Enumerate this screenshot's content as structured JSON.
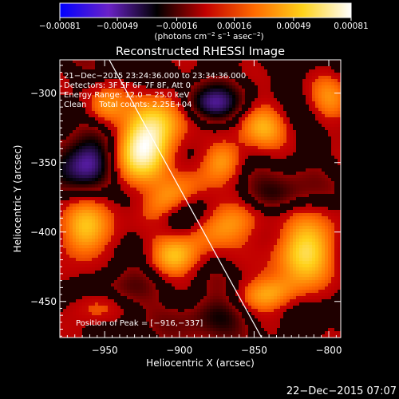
{
  "chart_data": {
    "type": "heatmap",
    "title": "Reconstructed RHESSI Image",
    "xlabel": "Heliocentric X (arcsec)",
    "ylabel": "Heliocentric Y (arcsec)",
    "xlim": [
      -980,
      -792
    ],
    "ylim": [
      -476,
      -276
    ],
    "xticks": [
      -950,
      -900,
      -850,
      -800
    ],
    "yticks": [
      -300,
      -350,
      -400,
      -450
    ],
    "xtick_labels": [
      "−950",
      "−900",
      "−850",
      "−800"
    ],
    "ytick_labels": [
      "−300",
      "−350",
      "−400",
      "−450"
    ],
    "colorbar": {
      "range": [
        -0.00081,
        0.00081
      ],
      "ticks": [
        -0.00081,
        -0.00049,
        -0.00016,
        0.00016,
        0.00049,
        0.00081
      ],
      "tick_labels": [
        "−0.00081",
        "−0.00049",
        "−0.00016",
        "0.00016",
        "0.00049",
        "0.00081"
      ],
      "label_parts": [
        "(photons cm",
        "−2",
        " s",
        "−1",
        " asec",
        "−2",
        ")"
      ],
      "colors": [
        "#0000ff",
        "#6a22c8",
        "#000000",
        "#c20000",
        "#ff6a00",
        "#ffd21a",
        "#ffffff"
      ]
    },
    "annotations": [
      "21−Dec−2015 23:24:36.000 to 23:34:36.000",
      "Detectors: 3F 5F 6F 7F 8F, Att 0",
      "Energy Range: 12.0 − 25.0 keV",
      "Clean     Total counts: 2.25E+04"
    ],
    "peak_label": "Position of Peak = [−916,−337]",
    "peak": [
      -916,
      -337
    ],
    "limb_line": [
      [
        -950,
        -270
      ],
      [
        -845,
        -476
      ]
    ],
    "sources": [
      {
        "x": -922,
        "y": -335,
        "sx": 14,
        "sy": 24,
        "rot": 32,
        "amp": 1.0
      },
      {
        "x": -950,
        "y": -310,
        "sx": 9,
        "sy": 10,
        "rot": 0,
        "amp": 0.45
      },
      {
        "x": -870,
        "y": -395,
        "sx": 28,
        "sy": 11,
        "rot": -20,
        "amp": 0.48
      },
      {
        "x": -815,
        "y": -412,
        "sx": 15,
        "sy": 17,
        "rot": 25,
        "amp": 0.72
      },
      {
        "x": -845,
        "y": -323,
        "sx": 12,
        "sy": 12,
        "rot": 0,
        "amp": 0.5
      },
      {
        "x": -870,
        "y": -348,
        "sx": 10,
        "sy": 10,
        "rot": 0,
        "amp": 0.45
      },
      {
        "x": -965,
        "y": -400,
        "sx": 12,
        "sy": 16,
        "rot": 0,
        "amp": 0.62
      },
      {
        "x": -905,
        "y": -420,
        "sx": 12,
        "sy": 10,
        "rot": 0,
        "amp": 0.5
      },
      {
        "x": -840,
        "y": -445,
        "sx": 16,
        "sy": 9,
        "rot": -10,
        "amp": 0.55
      },
      {
        "x": -905,
        "y": -375,
        "sx": 18,
        "sy": 9,
        "rot": -35,
        "amp": 0.45
      },
      {
        "x": -955,
        "y": -455,
        "sx": 12,
        "sy": 8,
        "rot": 0,
        "amp": 0.4
      },
      {
        "x": -800,
        "y": -305,
        "sx": 10,
        "sy": 14,
        "rot": 0,
        "amp": 0.35
      },
      {
        "x": -960,
        "y": -350,
        "sx": 14,
        "sy": 14,
        "rot": 0,
        "amp": -0.75
      },
      {
        "x": -880,
        "y": -308,
        "sx": 14,
        "sy": 10,
        "rot": 0,
        "amp": -0.6
      },
      {
        "x": -835,
        "y": -375,
        "sx": 16,
        "sy": 10,
        "rot": 0,
        "amp": -0.45
      },
      {
        "x": -875,
        "y": -460,
        "sx": 18,
        "sy": 10,
        "rot": 0,
        "amp": -0.35
      },
      {
        "x": -935,
        "y": -440,
        "sx": 14,
        "sy": 10,
        "rot": 0,
        "amp": -0.3
      },
      {
        "x": -900,
        "y": -395,
        "sx": 10,
        "sy": 10,
        "rot": 0,
        "amp": -0.3
      }
    ]
  },
  "footer": {
    "timestamp": "22−Dec−2015 07:07"
  }
}
